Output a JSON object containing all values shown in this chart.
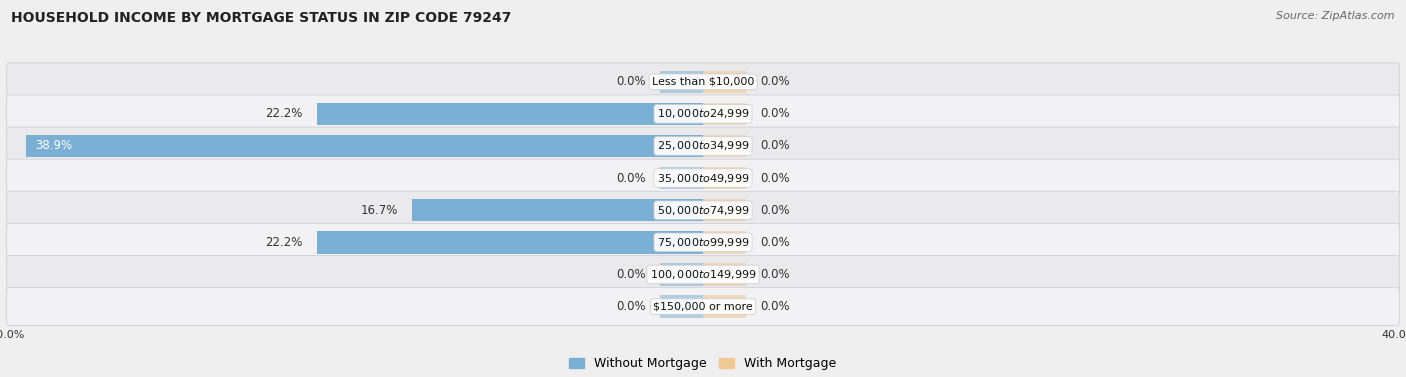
{
  "title": "HOUSEHOLD INCOME BY MORTGAGE STATUS IN ZIP CODE 79247",
  "source": "Source: ZipAtlas.com",
  "categories": [
    "Less than $10,000",
    "$10,000 to $24,999",
    "$25,000 to $34,999",
    "$35,000 to $49,999",
    "$50,000 to $74,999",
    "$75,000 to $99,999",
    "$100,000 to $149,999",
    "$150,000 or more"
  ],
  "without_mortgage": [
    0.0,
    22.2,
    38.9,
    0.0,
    16.7,
    22.2,
    0.0,
    0.0
  ],
  "with_mortgage": [
    0.0,
    0.0,
    0.0,
    0.0,
    0.0,
    0.0,
    0.0,
    0.0
  ],
  "xlim": 40.0,
  "stub_size": 2.5,
  "color_without": "#7bafd4",
  "color_with": "#f0c896",
  "label_without": "Without Mortgage",
  "label_with": "With Mortgage",
  "bg_row_even": "#eaeaed",
  "bg_row_odd": "#f2f2f5",
  "border_color": "#d0d0d5",
  "title_fontsize": 10,
  "source_fontsize": 8,
  "bar_label_fontsize": 8.5,
  "cat_label_fontsize": 8,
  "axis_label_fontsize": 8,
  "legend_fontsize": 9
}
